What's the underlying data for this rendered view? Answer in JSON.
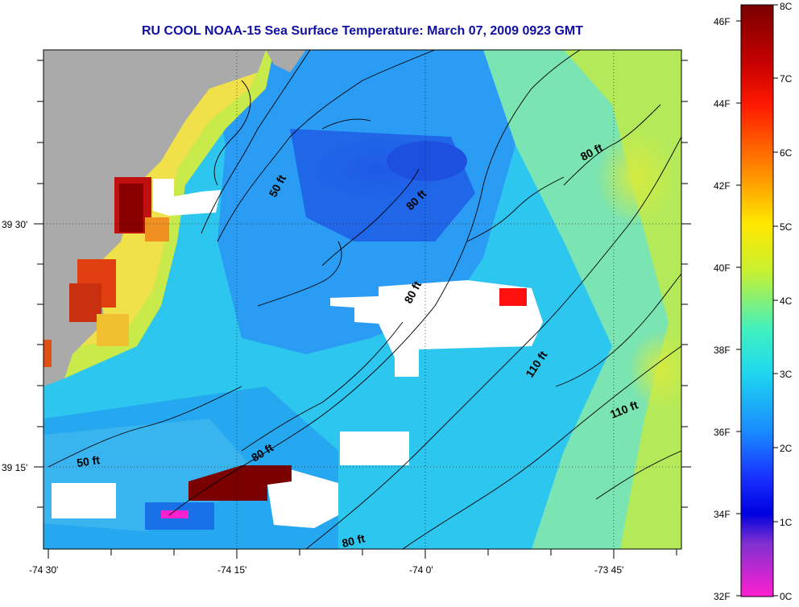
{
  "title": "RU COOL  NOAA-15  Sea Surface Temperature:  March 07, 2009 0923 GMT",
  "map": {
    "x_ticks": [
      "-74 30'",
      "-74 15'",
      "-74 0'",
      "-73 45'"
    ],
    "y_ticks": [
      "39 30'",
      "39 15'"
    ],
    "contour_labels": [
      "50 ft",
      "80 ft",
      "80 ft",
      "80 ft",
      "110 ft",
      "110 ft",
      "50 ft",
      "80 ft",
      "80 ft"
    ],
    "colors": {
      "land": "#aaaaaa",
      "cloud": "#ffffff",
      "contour": "#000000"
    }
  },
  "colorbar": {
    "celsius": [
      "8C",
      "7C",
      "6C",
      "5C",
      "4C",
      "3C",
      "2C",
      "1C",
      "0C"
    ],
    "fahrenheit": [
      "46F",
      "44F",
      "42F",
      "40F",
      "38F",
      "36F",
      "34F",
      "32F"
    ]
  }
}
